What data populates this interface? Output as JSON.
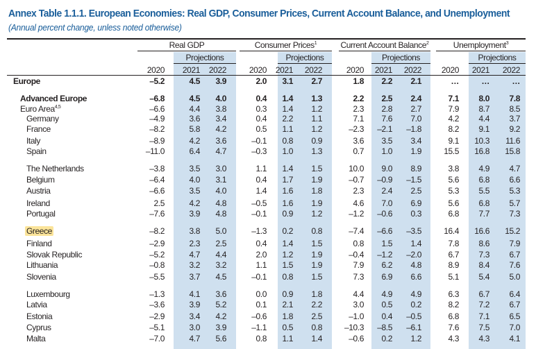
{
  "title": "Annex Table 1.1.1. European Economies: Real GDP, Consumer Prices, Current Account Balance, and Unemployment",
  "subtitle": "(Annual percent change, unless noted otherwise)",
  "groups": [
    {
      "label": "Real GDP",
      "sup": ""
    },
    {
      "label": "Consumer Prices",
      "sup": "1"
    },
    {
      "label": "Current Account Balance",
      "sup": "2"
    },
    {
      "label": "Unemployment",
      "sup": "3"
    }
  ],
  "projections_label": "Projections",
  "years": [
    "2020",
    "2021",
    "2022"
  ],
  "highlight_color": "#fbe49a",
  "band_color": "#cfe0ef",
  "rows": [
    {
      "name": "Europe",
      "sup": "",
      "style": "bold-top",
      "values": [
        "–5.2",
        "4.5",
        "3.9",
        "2.0",
        "3.1",
        "2.7",
        "1.8",
        "2.2",
        "2.1",
        "…",
        "…",
        "…"
      ]
    },
    {
      "name": "Advanced Europe",
      "sup": "",
      "style": "bold",
      "values": [
        "–6.8",
        "4.5",
        "4.0",
        "0.4",
        "1.4",
        "1.3",
        "2.2",
        "2.5",
        "2.4",
        "7.1",
        "8.0",
        "7.8"
      ]
    },
    {
      "name": "Euro Area",
      "sup": "4,5",
      "style": "normal",
      "values": [
        "–6.6",
        "4.4",
        "3.8",
        "0.3",
        "1.4",
        "1.2",
        "2.3",
        "2.8",
        "2.7",
        "7.9",
        "8.7",
        "8.5"
      ]
    },
    {
      "name": "Germany",
      "sup": "",
      "style": "indent",
      "values": [
        "–4.9",
        "3.6",
        "3.4",
        "0.4",
        "2.2",
        "1.1",
        "7.1",
        "7.6",
        "7.0",
        "4.2",
        "4.4",
        "3.7"
      ]
    },
    {
      "name": "France",
      "sup": "",
      "style": "indent",
      "values": [
        "–8.2",
        "5.8",
        "4.2",
        "0.5",
        "1.1",
        "1.2",
        "–2.3",
        "–2.1",
        "–1.8",
        "8.2",
        "9.1",
        "9.2"
      ]
    },
    {
      "name": "Italy",
      "sup": "",
      "style": "indent",
      "values": [
        "–8.9",
        "4.2",
        "3.6",
        "–0.1",
        "0.8",
        "0.9",
        "3.6",
        "3.5",
        "3.4",
        "9.1",
        "10.3",
        "11.6"
      ]
    },
    {
      "name": "Spain",
      "sup": "",
      "style": "indent",
      "values": [
        "–11.0",
        "6.4",
        "4.7",
        "–0.3",
        "1.0",
        "1.3",
        "0.7",
        "1.0",
        "1.9",
        "15.5",
        "16.8",
        "15.8"
      ]
    },
    {
      "name": "The Netherlands",
      "sup": "",
      "style": "indent",
      "values": [
        "–3.8",
        "3.5",
        "3.0",
        "1.1",
        "1.4",
        "1.5",
        "10.0",
        "9.0",
        "8.9",
        "3.8",
        "4.9",
        "4.7"
      ]
    },
    {
      "name": "Belgium",
      "sup": "",
      "style": "indent",
      "values": [
        "–6.4",
        "4.0",
        "3.1",
        "0.4",
        "1.7",
        "1.9",
        "–0.7",
        "–0.9",
        "–1.5",
        "5.6",
        "6.8",
        "6.6"
      ]
    },
    {
      "name": "Austria",
      "sup": "",
      "style": "indent",
      "values": [
        "–6.6",
        "3.5",
        "4.0",
        "1.4",
        "1.6",
        "1.8",
        "2.3",
        "2.4",
        "2.5",
        "5.3",
        "5.5",
        "5.3"
      ]
    },
    {
      "name": "Ireland",
      "sup": "",
      "style": "indent",
      "values": [
        "2.5",
        "4.2",
        "4.8",
        "–0.5",
        "1.6",
        "1.9",
        "4.6",
        "7.0",
        "6.9",
        "5.6",
        "6.8",
        "5.7"
      ]
    },
    {
      "name": "Portugal",
      "sup": "",
      "style": "indent",
      "values": [
        "–7.6",
        "3.9",
        "4.8",
        "–0.1",
        "0.9",
        "1.2",
        "–1.2",
        "–0.6",
        "0.3",
        "6.8",
        "7.7",
        "7.3"
      ]
    },
    {
      "name": "Greece",
      "sup": "",
      "style": "indent",
      "highlighted": true,
      "values": [
        "–8.2",
        "3.8",
        "5.0",
        "–1.3",
        "0.2",
        "0.8",
        "–7.4",
        "–6.6",
        "–3.5",
        "16.4",
        "16.6",
        "15.2"
      ]
    },
    {
      "name": "Finland",
      "sup": "",
      "style": "indent",
      "values": [
        "–2.9",
        "2.3",
        "2.5",
        "0.4",
        "1.4",
        "1.5",
        "0.8",
        "1.5",
        "1.4",
        "7.8",
        "8.6",
        "7.9"
      ]
    },
    {
      "name": "Slovak Republic",
      "sup": "",
      "style": "indent",
      "values": [
        "–5.2",
        "4.7",
        "4.4",
        "2.0",
        "1.2",
        "1.9",
        "–0.4",
        "–1.2",
        "–2.0",
        "6.7",
        "7.3",
        "6.7"
      ]
    },
    {
      "name": "Lithuania",
      "sup": "",
      "style": "indent",
      "values": [
        "–0.8",
        "3.2",
        "3.2",
        "1.1",
        "1.5",
        "1.9",
        "7.9",
        "6.2",
        "4.8",
        "8.9",
        "8.4",
        "7.6"
      ]
    },
    {
      "name": "Slovenia",
      "sup": "",
      "style": "indent",
      "values": [
        "–5.5",
        "3.7",
        "4.5",
        "–0.1",
        "0.8",
        "1.5",
        "7.3",
        "6.9",
        "6.6",
        "5.1",
        "5.4",
        "5.0"
      ]
    },
    {
      "name": "Luxembourg",
      "sup": "",
      "style": "indent",
      "values": [
        "–1.3",
        "4.1",
        "3.6",
        "0.0",
        "0.9",
        "1.8",
        "4.4",
        "4.9",
        "4.9",
        "6.3",
        "6.7",
        "6.4"
      ]
    },
    {
      "name": "Latvia",
      "sup": "",
      "style": "indent",
      "values": [
        "–3.6",
        "3.9",
        "5.2",
        "0.1",
        "2.1",
        "2.2",
        "3.0",
        "0.5",
        "0.2",
        "8.2",
        "7.2",
        "6.7"
      ]
    },
    {
      "name": "Estonia",
      "sup": "",
      "style": "indent",
      "values": [
        "–2.9",
        "3.4",
        "4.2",
        "–0.6",
        "1.8",
        "2.5",
        "–1.0",
        "0.4",
        "–0.5",
        "6.8",
        "7.1",
        "6.5"
      ]
    },
    {
      "name": "Cyprus",
      "sup": "",
      "style": "indent",
      "values": [
        "–5.1",
        "3.0",
        "3.9",
        "–1.1",
        "0.5",
        "0.8",
        "–10.3",
        "–8.5",
        "–6.1",
        "7.6",
        "7.5",
        "7.0"
      ]
    },
    {
      "name": "Malta",
      "sup": "",
      "style": "indent",
      "values": [
        "–7.0",
        "4.7",
        "5.6",
        "0.8",
        "1.1",
        "1.4",
        "–0.6",
        "0.2",
        "1.2",
        "4.3",
        "4.3",
        "4.1"
      ]
    }
  ]
}
